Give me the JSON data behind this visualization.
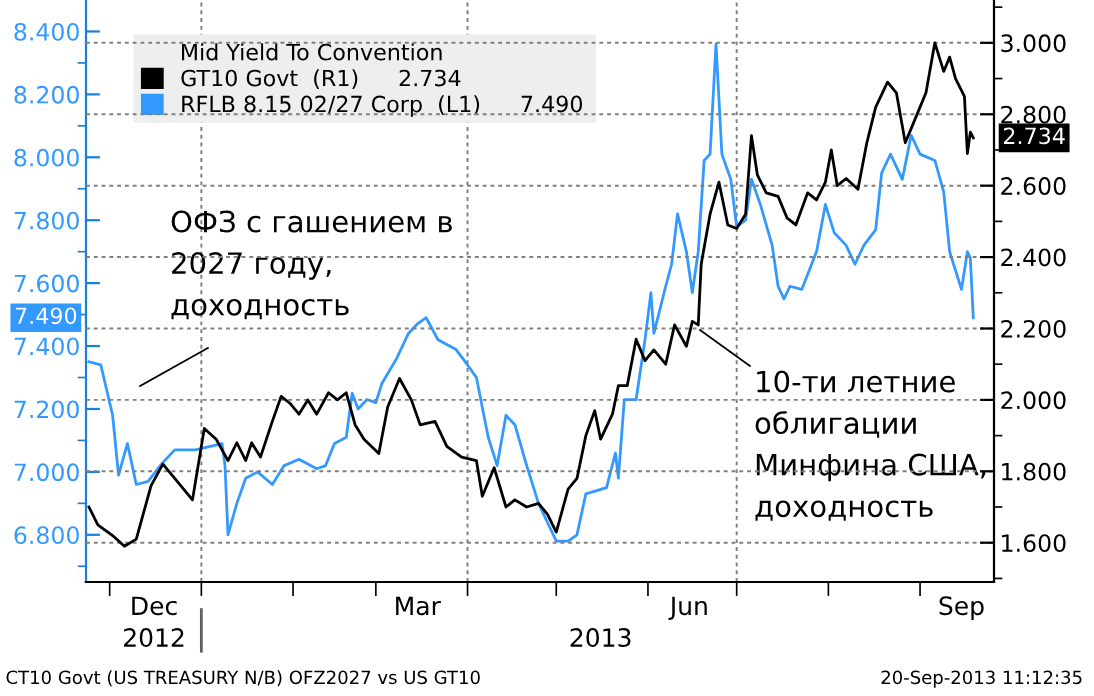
{
  "chart_data": {
    "type": "line",
    "xlim": [
      "2012-11-23",
      "2013-09-26"
    ],
    "xticks": [
      {
        "value": "2012-12-16",
        "label": "Dec"
      },
      {
        "value": "2013-03-15",
        "label": "Mar"
      },
      {
        "value": "2013-06-15",
        "label": "Jun"
      },
      {
        "value": "2013-09-15",
        "label": "Sep"
      },
      {
        "value": "2012-12-01",
        "label": null
      },
      {
        "value": "2013-01-01",
        "label": null
      },
      {
        "value": "2013-02-01",
        "label": null
      },
      {
        "value": "2013-03-01",
        "label": null
      },
      {
        "value": "2013-04-01",
        "label": null
      },
      {
        "value": "2013-05-01",
        "label": null
      },
      {
        "value": "2013-06-01",
        "label": null
      },
      {
        "value": "2013-07-01",
        "label": null
      },
      {
        "value": "2013-08-01",
        "label": null
      },
      {
        "value": "2013-09-01",
        "label": null
      }
    ],
    "x2lim": [
      "2012-11-23",
      "2013-09-26"
    ],
    "x2ticks": [
      {
        "value": "2012-12-16",
        "label": "2012"
      },
      {
        "value": "2013-01-01",
        "label": null
      },
      {
        "value": "2013-05-16",
        "label": "2013"
      }
    ],
    "ylim": [
      6.65,
      8.5
    ],
    "yticks": [
      {
        "value": 6.8,
        "label": "6.800"
      },
      {
        "value": 7.0,
        "label": "7.000"
      },
      {
        "value": 7.2,
        "label": "7.200"
      },
      {
        "value": 7.4,
        "label": "7.400"
      },
      {
        "value": 7.6,
        "label": "7.600"
      },
      {
        "value": 7.8,
        "label": "7.800"
      },
      {
        "value": 8.0,
        "label": "8.000"
      },
      {
        "value": 8.2,
        "label": "8.200"
      },
      {
        "value": 8.4,
        "label": "8.400"
      },
      {
        "value": 6.7,
        "label": null
      },
      {
        "value": 6.9,
        "label": null
      },
      {
        "value": 7.1,
        "label": null
      },
      {
        "value": 7.3,
        "label": null
      },
      {
        "value": 7.5,
        "label": null
      },
      {
        "value": 7.7,
        "label": null
      },
      {
        "value": 7.9,
        "label": null
      },
      {
        "value": 8.1,
        "label": null
      },
      {
        "value": 8.3,
        "label": null
      }
    ],
    "y2lim": [
      1.49,
      3.12
    ],
    "y2ticks": [
      {
        "value": 1.6,
        "label": "1.600"
      },
      {
        "value": 1.8,
        "label": "1.800"
      },
      {
        "value": 2.0,
        "label": "2.000"
      },
      {
        "value": 2.2,
        "label": "2.200"
      },
      {
        "value": 2.4,
        "label": "2.400"
      },
      {
        "value": 2.6,
        "label": "2.600"
      },
      {
        "value": 2.8,
        "label": "2.800"
      },
      {
        "value": 3.0,
        "label": "3.000"
      },
      {
        "value": 1.5,
        "label": null
      },
      {
        "value": 1.7,
        "label": null
      },
      {
        "value": 1.9,
        "label": null
      },
      {
        "value": 2.1,
        "label": null
      },
      {
        "value": 2.3,
        "label": null
      },
      {
        "value": 2.5,
        "label": null
      },
      {
        "value": 2.7,
        "label": null
      },
      {
        "value": 2.9,
        "label": null
      },
      {
        "value": 3.1,
        "label": null
      }
    ],
    "grid": "y",
    "legend": "top left",
    "legend_title": "Mid Yield To Convention",
    "ref_lines": [
      {
        "axis": "x",
        "value": "2013-01-01",
        "color": "#808080",
        "line_style": "dashed"
      },
      {
        "axis": "x",
        "value": "2013-04-01",
        "color": "#808080",
        "line_style": "dashed"
      },
      {
        "axis": "x",
        "value": "2013-07-01",
        "color": "#808080",
        "line_style": "dashed"
      }
    ],
    "series": [
      {
        "name": "GT10 Govt  (R1)",
        "color": "#000000",
        "axis": "y2",
        "x": [
          "2012-11-24",
          "2012-11-27",
          "2012-12-02",
          "2012-12-06",
          "2012-12-10",
          "2012-12-13",
          "2012-12-15",
          "2012-12-19",
          "2012-12-23",
          "2012-12-29",
          "2013-01-02",
          "2013-01-06",
          "2013-01-10",
          "2013-01-13",
          "2013-01-16",
          "2013-01-18",
          "2013-01-21",
          "2013-01-25",
          "2013-01-28",
          "2013-01-31",
          "2013-02-03",
          "2013-02-06",
          "2013-02-09",
          "2013-02-13",
          "2013-02-16",
          "2013-02-19",
          "2013-02-22",
          "2013-02-25",
          "2013-03-02",
          "2013-03-05",
          "2013-03-09",
          "2013-03-13",
          "2013-03-16",
          "2013-03-21",
          "2013-03-25",
          "2013-03-30",
          "2013-04-04",
          "2013-04-06",
          "2013-04-10",
          "2013-04-14",
          "2013-04-17",
          "2013-04-21",
          "2013-04-25",
          "2013-04-28",
          "2013-05-01",
          "2013-05-05",
          "2013-05-08",
          "2013-05-11",
          "2013-05-14",
          "2013-05-16",
          "2013-05-20",
          "2013-05-22",
          "2013-05-25",
          "2013-05-28",
          "2013-05-31",
          "2013-06-03",
          "2013-06-07",
          "2013-06-10",
          "2013-06-14",
          "2013-06-16",
          "2013-06-18",
          "2013-06-19",
          "2013-06-22",
          "2013-06-25",
          "2013-06-28",
          "2013-07-01",
          "2013-07-04",
          "2013-07-06",
          "2013-07-08",
          "2013-07-11",
          "2013-07-15",
          "2013-07-18",
          "2013-07-21",
          "2013-07-25",
          "2013-07-28",
          "2013-07-31",
          "2013-08-02",
          "2013-08-04",
          "2013-08-07",
          "2013-08-11",
          "2013-08-14",
          "2013-08-17",
          "2013-08-21",
          "2013-08-24",
          "2013-08-27",
          "2013-08-30",
          "2013-09-03",
          "2013-09-06",
          "2013-09-09",
          "2013-09-11",
          "2013-09-13",
          "2013-09-16",
          "2013-09-17",
          "2013-09-18",
          "2013-09-19"
        ],
        "values": [
          1.7,
          1.65,
          1.62,
          1.59,
          1.61,
          1.7,
          1.76,
          1.82,
          1.78,
          1.72,
          1.92,
          1.89,
          1.83,
          1.88,
          1.83,
          1.88,
          1.84,
          1.94,
          2.01,
          1.99,
          1.96,
          2.0,
          1.96,
          2.02,
          2.0,
          2.02,
          1.93,
          1.89,
          1.85,
          1.98,
          2.06,
          2.0,
          1.93,
          1.94,
          1.87,
          1.84,
          1.83,
          1.73,
          1.81,
          1.7,
          1.72,
          1.7,
          1.71,
          1.68,
          1.63,
          1.75,
          1.78,
          1.9,
          1.97,
          1.89,
          1.96,
          2.04,
          2.04,
          2.17,
          2.11,
          2.14,
          2.1,
          2.21,
          2.15,
          2.22,
          2.21,
          2.38,
          2.52,
          2.61,
          2.49,
          2.48,
          2.52,
          2.74,
          2.63,
          2.58,
          2.57,
          2.51,
          2.49,
          2.58,
          2.56,
          2.61,
          2.7,
          2.6,
          2.62,
          2.59,
          2.72,
          2.82,
          2.89,
          2.86,
          2.72,
          2.78,
          2.86,
          3.0,
          2.92,
          2.96,
          2.9,
          2.85,
          2.69,
          2.75,
          2.734
        ],
        "value_labels": [
          null,
          null,
          null,
          null,
          null,
          null,
          null,
          null,
          null,
          null,
          null,
          null,
          null,
          null,
          null,
          null,
          null,
          null,
          null,
          null,
          null,
          null,
          null,
          null,
          null,
          null,
          null,
          null,
          null,
          null,
          null,
          null,
          null,
          null,
          null,
          null,
          null,
          null,
          null,
          null,
          null,
          null,
          null,
          null,
          null,
          null,
          null,
          null,
          null,
          null,
          null,
          null,
          null,
          null,
          null,
          null,
          null,
          null,
          null,
          null,
          null,
          null,
          null,
          null,
          null,
          null,
          null,
          null,
          null,
          null,
          null,
          null,
          null,
          null,
          null,
          null,
          null,
          null,
          null,
          null,
          null,
          null,
          null,
          null,
          null,
          null,
          null,
          null,
          null,
          null,
          null,
          null,
          null,
          null,
          "2.734"
        ]
      },
      {
        "name": "RFLB 8.15 02/27 Corp  (L1)",
        "color": "#3399ff",
        "axis": "y",
        "x": [
          "2012-11-24",
          "2012-11-28",
          "2012-12-02",
          "2012-12-04",
          "2012-12-07",
          "2012-12-10",
          "2012-12-14",
          "2012-12-19",
          "2012-12-23",
          "2012-12-30",
          "2013-01-08",
          "2013-01-09",
          "2013-01-10",
          "2013-01-13",
          "2013-01-16",
          "2013-01-20",
          "2013-01-25",
          "2013-01-29",
          "2013-02-03",
          "2013-02-09",
          "2013-02-12",
          "2013-02-15",
          "2013-02-19",
          "2013-02-21",
          "2013-02-23",
          "2013-02-26",
          "2013-03-01",
          "2013-03-03",
          "2013-03-08",
          "2013-03-12",
          "2013-03-15",
          "2013-03-18",
          "2013-03-22",
          "2013-03-28",
          "2013-04-01",
          "2013-04-04",
          "2013-04-08",
          "2013-04-11",
          "2013-04-14",
          "2013-04-17",
          "2013-04-21",
          "2013-04-25",
          "2013-04-28",
          "2013-05-01",
          "2013-05-05",
          "2013-05-08",
          "2013-05-11",
          "2013-05-18",
          "2013-05-21",
          "2013-05-22",
          "2013-05-24",
          "2013-05-28",
          "2013-05-31",
          "2013-06-02",
          "2013-06-03",
          "2013-06-07",
          "2013-06-09",
          "2013-06-11",
          "2013-06-14",
          "2013-06-16",
          "2013-06-18",
          "2013-06-20",
          "2013-06-22",
          "2013-06-24",
          "2013-06-26",
          "2013-06-29",
          "2013-07-01",
          "2013-07-04",
          "2013-07-06",
          "2013-07-09",
          "2013-07-13",
          "2013-07-15",
          "2013-07-17",
          "2013-07-19",
          "2013-07-23",
          "2013-07-28",
          "2013-07-31",
          "2013-08-03",
          "2013-08-07",
          "2013-08-10",
          "2013-08-13",
          "2013-08-17",
          "2013-08-19",
          "2013-08-22",
          "2013-08-26",
          "2013-08-29",
          "2013-09-01",
          "2013-09-06",
          "2013-09-09",
          "2013-09-11",
          "2013-09-15",
          "2013-09-17",
          "2013-09-18",
          "2013-09-19"
        ],
        "values": [
          7.35,
          7.34,
          7.18,
          6.99,
          7.09,
          6.96,
          6.97,
          7.03,
          7.07,
          7.07,
          7.09,
          7.02,
          6.8,
          6.9,
          6.98,
          7.0,
          6.96,
          7.02,
          7.04,
          7.01,
          7.02,
          7.09,
          7.11,
          7.25,
          7.2,
          7.23,
          7.22,
          7.28,
          7.36,
          7.44,
          7.47,
          7.49,
          7.42,
          7.39,
          7.34,
          7.3,
          7.11,
          7.02,
          7.18,
          7.15,
          7.02,
          6.9,
          6.84,
          6.78,
          6.78,
          6.8,
          6.93,
          6.95,
          7.06,
          6.98,
          7.23,
          7.23,
          7.42,
          7.57,
          7.44,
          7.59,
          7.66,
          7.82,
          7.7,
          7.57,
          7.7,
          7.99,
          8.01,
          8.36,
          8.01,
          7.93,
          7.78,
          7.8,
          7.93,
          7.85,
          7.72,
          7.59,
          7.55,
          7.59,
          7.58,
          7.7,
          7.85,
          7.76,
          7.72,
          7.66,
          7.72,
          7.77,
          7.95,
          8.01,
          7.93,
          8.07,
          8.01,
          7.99,
          7.89,
          7.7,
          7.58,
          7.7,
          7.68,
          7.49
        ]
      }
    ],
    "annotations": [
      "ОФЗ с гашением в\n2027 году,\nдоходность",
      "10-ти летние\nоблигации\nМинфина США,\nдоходность",
      "2.734",
      "7.490",
      "7.490",
      "CT10 Govt (US TREASURY N/B) OFZ2027 vs US GT10",
      "20-Sep-2013 11:12:35"
    ]
  }
}
